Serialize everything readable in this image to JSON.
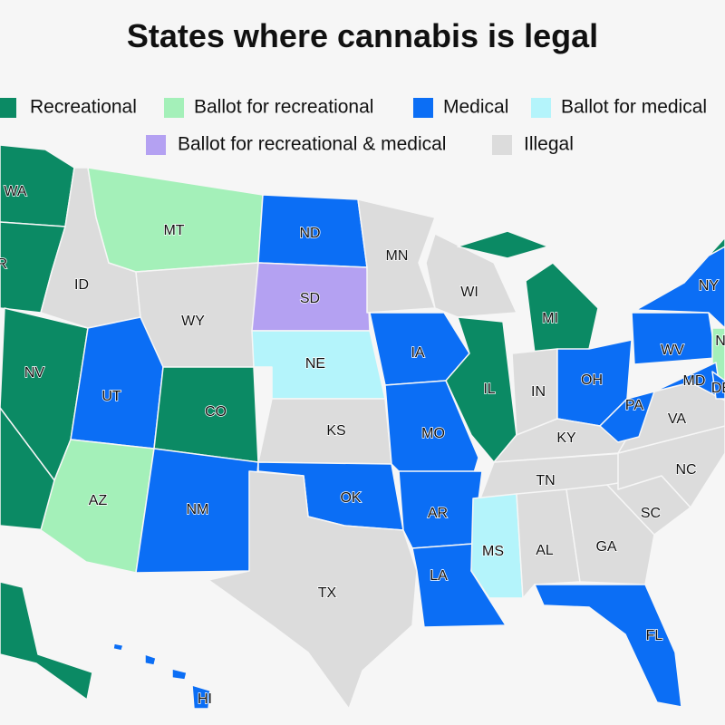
{
  "title": "States where cannabis is legal",
  "categories": [
    {
      "name": "Recreational",
      "color": "#0b8a64",
      "states": [
        "WA",
        "OR",
        "NV",
        "CO",
        "IL",
        "MI"
      ]
    },
    {
      "name": "Ballot for recreational",
      "color": "#a4f0b9",
      "states": [
        "MT",
        "AZ",
        "NJ"
      ]
    },
    {
      "name": "Medical",
      "color": "#0b6ef5",
      "states": [
        "ND",
        "UT",
        "NM",
        "OK",
        "IA",
        "MO",
        "AR",
        "LA",
        "OH",
        "PA",
        "WV",
        "MD",
        "DE",
        "NY",
        "FL",
        "HI"
      ]
    },
    {
      "name": "Ballot for medical",
      "color": "#b4f4fb",
      "states": [
        "NE",
        "MS"
      ]
    },
    {
      "name": "Ballot for recreational & medical",
      "color": "#b4a1f2",
      "states": [
        "SD"
      ]
    },
    {
      "name": "Illegal",
      "color": "#dcdcdc",
      "states": [
        "ID",
        "WY",
        "MN",
        "WI",
        "KS",
        "TX",
        "IN",
        "KY",
        "TN",
        "AL",
        "GA",
        "SC",
        "NC",
        "VA"
      ]
    }
  ]
}
